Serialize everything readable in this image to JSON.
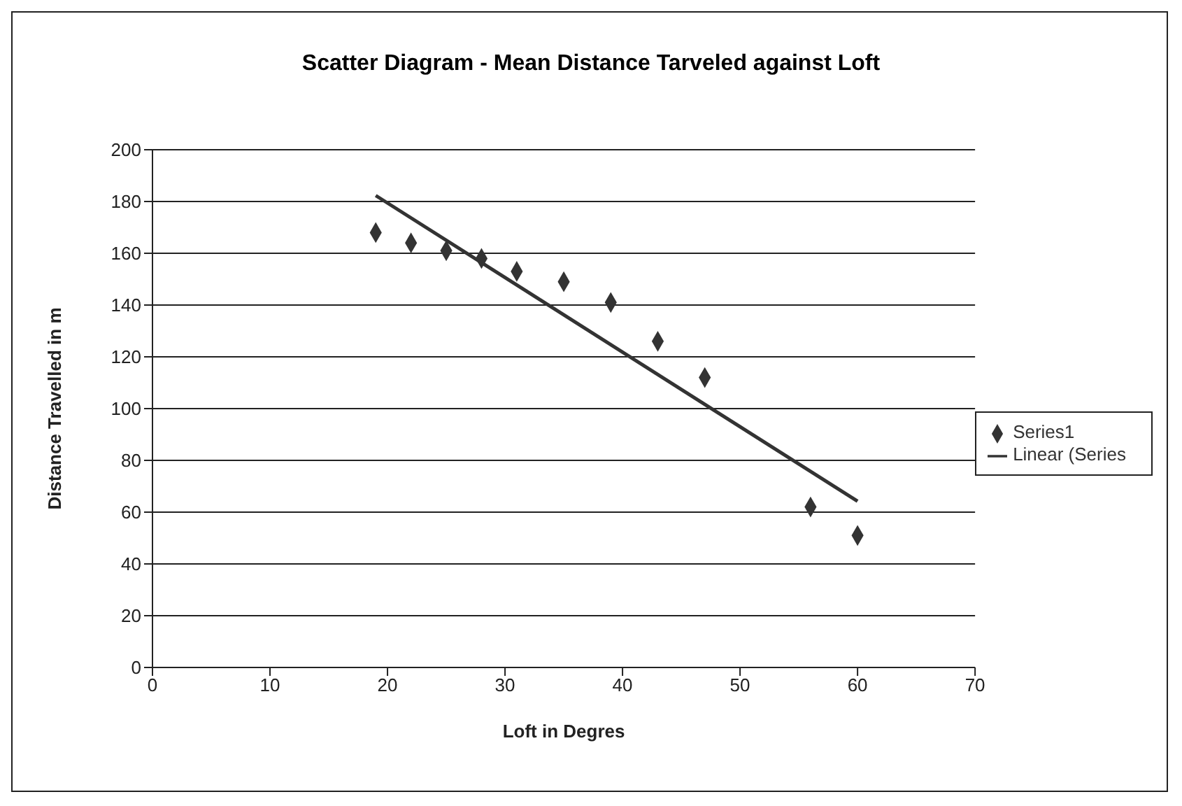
{
  "chart_data": {
    "type": "scatter",
    "title": "Scatter Diagram - Mean Distance Tarveled against Loft",
    "xlabel": "Loft in Degres",
    "ylabel": "Distance Travelled in m",
    "series": [
      {
        "name": "Series1",
        "marker": "diamond",
        "color": "#333333",
        "x": [
          19,
          22,
          25,
          28,
          31,
          35,
          39,
          43,
          47,
          56,
          60
        ],
        "values": [
          168,
          164,
          161,
          158,
          153,
          149,
          141,
          126,
          112,
          62,
          51
        ]
      },
      {
        "name": "Linear (Series",
        "type": "line",
        "color": "#333333",
        "x": [
          19,
          60
        ],
        "values": [
          182.3,
          64.2
        ]
      }
    ],
    "xlim": [
      0,
      70
    ],
    "xticks": [
      0,
      10,
      20,
      30,
      40,
      50,
      60,
      70
    ],
    "ylim": [
      0,
      200
    ],
    "yticks": [
      0,
      20,
      40,
      60,
      80,
      100,
      120,
      140,
      160,
      180,
      200
    ],
    "grid": "y",
    "legend": "right",
    "line_style": "solid"
  }
}
